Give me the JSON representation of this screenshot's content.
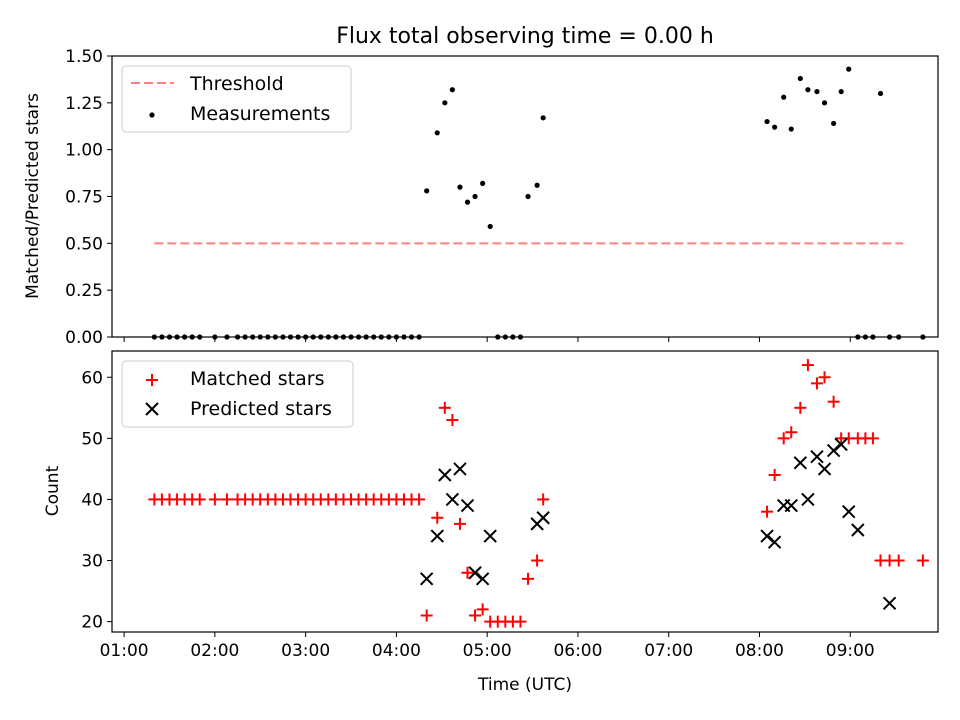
{
  "figure": {
    "title": "Flux total observing time = 0.00 h",
    "xlabel": "Time (UTC)"
  },
  "colors": {
    "threshold": "#ff7f7f",
    "measurements": "#000000",
    "matched": "#ff0000",
    "predicted": "#000000"
  },
  "chart_data": [
    {
      "type": "scatter",
      "ylabel": "Matched/Predicted stars",
      "ylim": [
        0.0,
        1.5
      ],
      "xlim": [
        "00:52",
        "09:58"
      ],
      "yticks": [
        "0.00",
        "0.25",
        "0.50",
        "0.75",
        "1.00",
        "1.25",
        "1.50"
      ],
      "legend_placement": "top-left",
      "series": [
        {
          "name": "Threshold",
          "style": "dashed-line",
          "x": [
            "01:20",
            "09:35"
          ],
          "y": [
            0.5,
            0.5
          ]
        },
        {
          "name": "Measurements",
          "style": "dot",
          "x": [
            "01:20",
            "01:25",
            "01:30",
            "01:35",
            "01:40",
            "01:45",
            "01:50",
            "02:00",
            "02:08",
            "02:15",
            "02:20",
            "02:25",
            "02:30",
            "02:35",
            "02:40",
            "02:45",
            "02:50",
            "02:55",
            "03:00",
            "03:05",
            "03:10",
            "03:15",
            "03:20",
            "03:25",
            "03:30",
            "03:35",
            "03:40",
            "03:45",
            "03:50",
            "03:55",
            "04:00",
            "04:05",
            "04:10",
            "04:15",
            "04:20",
            "04:27",
            "04:32",
            "04:37",
            "04:42",
            "04:47",
            "04:52",
            "04:57",
            "05:02",
            "05:07",
            "05:12",
            "05:17",
            "05:22",
            "05:27",
            "05:33",
            "05:37",
            "08:05",
            "08:10",
            "08:16",
            "08:21",
            "08:27",
            "08:32",
            "08:38",
            "08:43",
            "08:49",
            "08:54",
            "08:59",
            "09:05",
            "09:10",
            "09:15",
            "09:20",
            "09:26",
            "09:32",
            "09:48"
          ],
          "y": [
            0,
            0,
            0,
            0,
            0,
            0,
            0,
            0,
            0,
            0,
            0,
            0,
            0,
            0,
            0,
            0,
            0,
            0,
            0,
            0,
            0,
            0,
            0,
            0,
            0,
            0,
            0,
            0,
            0,
            0,
            0,
            0,
            0,
            0,
            0.78,
            1.09,
            1.25,
            1.32,
            0.8,
            0.72,
            0.75,
            0.82,
            0.59,
            0,
            0,
            0,
            0,
            0.75,
            0.81,
            1.17,
            1.15,
            1.12,
            1.28,
            1.11,
            1.38,
            1.32,
            1.31,
            1.25,
            1.14,
            1.31,
            1.43,
            0,
            0,
            0,
            1.3,
            0,
            0,
            0
          ]
        }
      ]
    },
    {
      "type": "scatter",
      "ylabel": "Count",
      "ylim": [
        18.3,
        64.3
      ],
      "xlim": [
        "00:52",
        "09:58"
      ],
      "yticks": [
        "20",
        "30",
        "40",
        "50",
        "60"
      ],
      "xticks": [
        "01:00",
        "02:00",
        "03:00",
        "04:00",
        "05:00",
        "06:00",
        "07:00",
        "08:00",
        "09:00"
      ],
      "legend_placement": "top-left",
      "series": [
        {
          "name": "Matched stars",
          "style": "plus",
          "x": [
            "01:20",
            "01:25",
            "01:30",
            "01:35",
            "01:40",
            "01:45",
            "01:50",
            "02:00",
            "02:08",
            "02:15",
            "02:20",
            "02:25",
            "02:30",
            "02:35",
            "02:40",
            "02:45",
            "02:50",
            "02:55",
            "03:00",
            "03:05",
            "03:10",
            "03:15",
            "03:20",
            "03:25",
            "03:30",
            "03:35",
            "03:40",
            "03:45",
            "03:50",
            "03:55",
            "04:00",
            "04:05",
            "04:10",
            "04:15",
            "04:20",
            "04:27",
            "04:32",
            "04:37",
            "04:42",
            "04:47",
            "04:52",
            "04:57",
            "05:02",
            "05:07",
            "05:12",
            "05:17",
            "05:22",
            "05:27",
            "05:33",
            "05:37",
            "08:05",
            "08:10",
            "08:16",
            "08:21",
            "08:27",
            "08:32",
            "08:38",
            "08:43",
            "08:49",
            "08:54",
            "08:59",
            "09:05",
            "09:10",
            "09:15",
            "09:20",
            "09:26",
            "09:32",
            "09:48"
          ],
          "y": [
            40,
            40,
            40,
            40,
            40,
            40,
            40,
            40,
            40,
            40,
            40,
            40,
            40,
            40,
            40,
            40,
            40,
            40,
            40,
            40,
            40,
            40,
            40,
            40,
            40,
            40,
            40,
            40,
            40,
            40,
            40,
            40,
            40,
            40,
            21,
            37,
            55,
            53,
            36,
            28,
            21,
            22,
            20,
            20,
            20,
            20,
            20,
            27,
            30,
            40,
            38,
            44,
            50,
            51,
            55,
            62,
            59,
            60,
            56,
            50,
            50,
            50,
            50,
            50,
            30,
            30,
            30,
            30
          ]
        },
        {
          "name": "Predicted stars",
          "style": "x",
          "x": [
            "04:20",
            "04:27",
            "04:32",
            "04:37",
            "04:42",
            "04:47",
            "04:52",
            "04:57",
            "05:02",
            "05:33",
            "05:37",
            "08:05",
            "08:10",
            "08:16",
            "08:21",
            "08:27",
            "08:32",
            "08:38",
            "08:43",
            "08:49",
            "08:54",
            "08:59",
            "09:05",
            "09:26"
          ],
          "y": [
            27,
            34,
            44,
            40,
            45,
            39,
            28,
            27,
            34,
            36,
            37,
            34,
            33,
            39,
            39,
            46,
            40,
            47,
            45,
            48,
            49,
            38,
            35,
            23
          ]
        }
      ]
    }
  ]
}
